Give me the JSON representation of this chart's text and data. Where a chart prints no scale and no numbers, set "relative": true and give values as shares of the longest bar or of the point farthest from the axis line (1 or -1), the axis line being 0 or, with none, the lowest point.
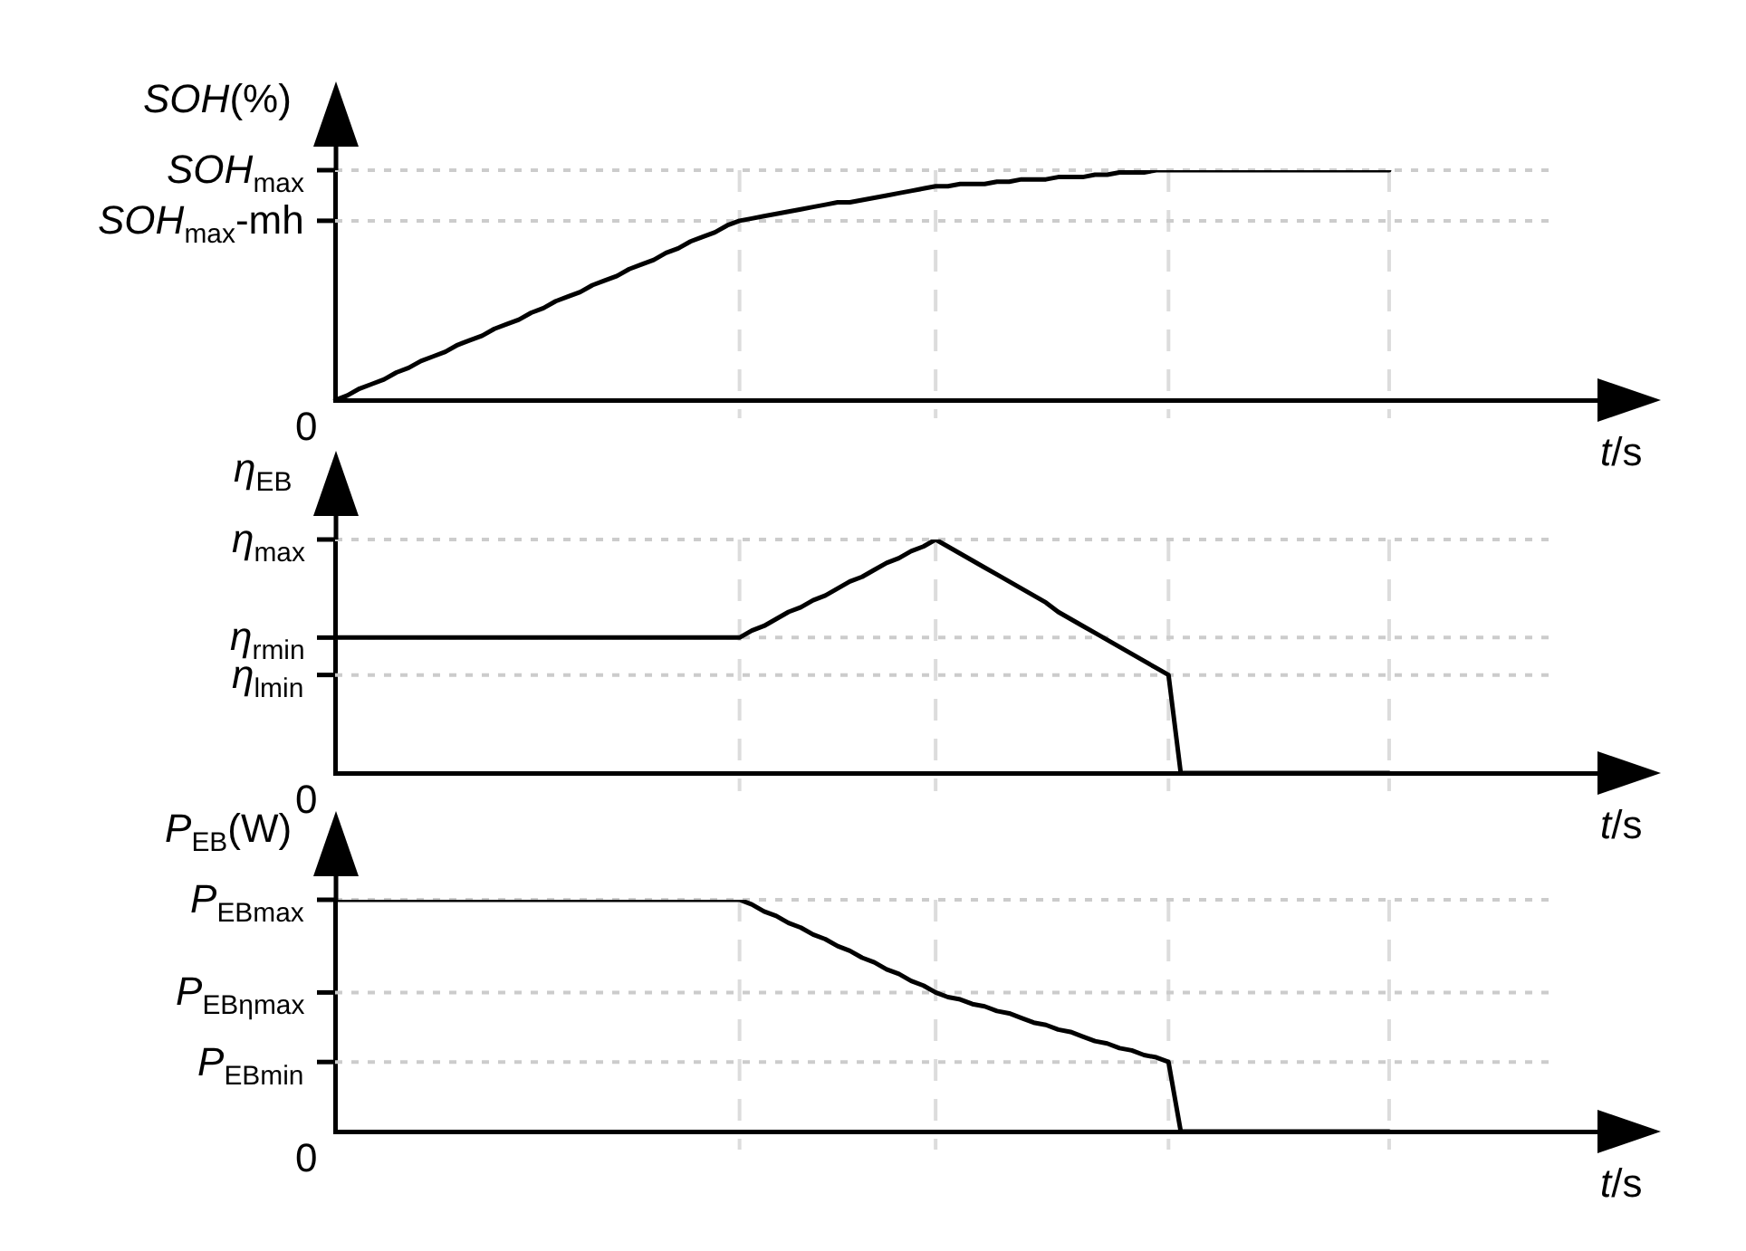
{
  "chart_data": [
    {
      "type": "line",
      "relative": true,
      "xlabel": "t/s",
      "ylabel": "SOH(%)",
      "categories": [
        null,
        null,
        null,
        null,
        null,
        null,
        null,
        null,
        null,
        null,
        null,
        null,
        null,
        null,
        null,
        null,
        null,
        null,
        null,
        null,
        null,
        null,
        null,
        null,
        null,
        null,
        null,
        null,
        null,
        null,
        null,
        null,
        null,
        null,
        null,
        null,
        null,
        null,
        null,
        null,
        null,
        null,
        null,
        null,
        null,
        null,
        null,
        null,
        null,
        null,
        null,
        null,
        null,
        null,
        null,
        null,
        null,
        null,
        null,
        null,
        null,
        null,
        null,
        null,
        null,
        null,
        null,
        null,
        null,
        null,
        null,
        null,
        null,
        null,
        null,
        null,
        null,
        null,
        null,
        null,
        null,
        null,
        null,
        null,
        null,
        null,
        null,
        null,
        null,
        null,
        null,
        null,
        null,
        null,
        null,
        null,
        null,
        null,
        null,
        null,
        null,
        null,
        null,
        null
      ],
      "values": [
        0,
        0.02,
        0.05,
        0.07,
        0.09,
        0.12,
        0.14,
        0.17,
        0.19,
        0.21,
        0.24,
        0.26,
        0.28,
        0.31,
        0.33,
        0.35,
        0.38,
        0.4,
        0.43,
        0.45,
        0.47,
        0.5,
        0.52,
        0.54,
        0.57,
        0.59,
        0.61,
        0.64,
        0.66,
        0.69,
        0.71,
        0.73,
        0.76,
        0.78,
        0.79,
        0.8,
        0.81,
        0.82,
        0.83,
        0.84,
        0.85,
        0.86,
        0.86,
        0.87,
        0.88,
        0.89,
        0.9,
        0.91,
        0.92,
        0.93,
        0.93,
        0.94,
        0.94,
        0.94,
        0.95,
        0.95,
        0.96,
        0.96,
        0.96,
        0.97,
        0.97,
        0.97,
        0.98,
        0.98,
        0.99,
        0.99,
        0.99,
        1,
        1,
        1,
        1,
        1,
        1,
        1,
        1,
        1,
        1,
        1,
        1,
        1,
        1,
        1,
        1,
        1,
        1,
        1,
        1,
        null,
        null,
        null,
        null,
        null,
        null,
        null,
        null,
        null,
        null,
        null,
        null,
        null,
        null,
        null,
        null,
        null
      ],
      "color": "#000000",
      "grid": "x",
      "ref_lines": [
        {
          "axis": "y",
          "value": 1,
          "label": "SOH$_{max}$",
          "color": "#cccccc",
          "line_style": "dotted"
        },
        {
          "axis": "y",
          "value": 0.78,
          "label": "SOH$_{max}$-mh",
          "color": "#cccccc",
          "line_style": "dotted"
        }
      ],
      "annotations": [
        "0"
      ]
    },
    {
      "type": "line",
      "relative": true,
      "xlabel": "t/s",
      "ylabel": "η$_{EB}$",
      "categories": [
        null,
        null,
        null,
        null,
        null,
        null,
        null,
        null,
        null,
        null,
        null,
        null,
        null,
        null,
        null,
        null,
        null,
        null,
        null,
        null,
        null,
        null,
        null,
        null,
        null,
        null,
        null,
        null,
        null,
        null,
        null,
        null,
        null,
        null,
        null,
        null,
        null,
        null,
        null,
        null,
        null,
        null,
        null,
        null,
        null,
        null,
        null,
        null,
        null,
        null,
        null,
        null,
        null,
        null,
        null,
        null,
        null,
        null,
        null,
        null,
        null,
        null,
        null,
        null,
        null,
        null,
        null,
        null,
        null,
        null,
        null,
        null,
        null,
        null,
        null,
        null,
        null,
        null,
        null,
        null,
        null,
        null,
        null,
        null,
        null,
        null,
        null,
        null,
        null,
        null,
        null,
        null,
        null,
        null,
        null,
        null,
        null,
        null,
        null,
        null,
        null,
        null,
        null,
        null
      ],
      "values": [
        0.58,
        0.58,
        0.58,
        0.58,
        0.58,
        0.58,
        0.58,
        0.58,
        0.58,
        0.58,
        0.58,
        0.58,
        0.58,
        0.58,
        0.58,
        0.58,
        0.58,
        0.58,
        0.58,
        0.58,
        0.58,
        0.58,
        0.58,
        0.58,
        0.58,
        0.58,
        0.58,
        0.58,
        0.58,
        0.58,
        0.58,
        0.58,
        0.58,
        0.58,
        0.61,
        0.63,
        0.66,
        0.69,
        0.71,
        0.74,
        0.76,
        0.79,
        0.82,
        0.84,
        0.87,
        0.9,
        0.92,
        0.95,
        0.97,
        1,
        0.97,
        0.94,
        0.91,
        0.88,
        0.85,
        0.82,
        0.79,
        0.76,
        0.73,
        0.69,
        0.66,
        0.63,
        0.6,
        0.57,
        0.54,
        0.51,
        0.48,
        0.45,
        0.42,
        0,
        0,
        0,
        0,
        0,
        0,
        0,
        0,
        0,
        0,
        0,
        0,
        0,
        0,
        0,
        0,
        0,
        0,
        null,
        null,
        null,
        null,
        null,
        null,
        null,
        null,
        null,
        null,
        null,
        null,
        null,
        null,
        null,
        null,
        null
      ],
      "color": "#000000",
      "grid": "x",
      "ref_lines": [
        {
          "axis": "y",
          "value": 1,
          "label": "η$_{max}$",
          "color": "#cccccc",
          "line_style": "dotted"
        },
        {
          "axis": "y",
          "value": 0.58,
          "label": "η$_{rmin}$",
          "color": "#cccccc",
          "line_style": "dotted"
        },
        {
          "axis": "y",
          "value": 0.42,
          "label": "η$_{lmin}$",
          "color": "#cccccc",
          "line_style": "dotted"
        }
      ],
      "annotations": [
        "0"
      ]
    },
    {
      "type": "line",
      "relative": true,
      "xlabel": "t/s",
      "ylabel": "P$_{EB}$(W)",
      "categories": [
        null,
        null,
        null,
        null,
        null,
        null,
        null,
        null,
        null,
        null,
        null,
        null,
        null,
        null,
        null,
        null,
        null,
        null,
        null,
        null,
        null,
        null,
        null,
        null,
        null,
        null,
        null,
        null,
        null,
        null,
        null,
        null,
        null,
        null,
        null,
        null,
        null,
        null,
        null,
        null,
        null,
        null,
        null,
        null,
        null,
        null,
        null,
        null,
        null,
        null,
        null,
        null,
        null,
        null,
        null,
        null,
        null,
        null,
        null,
        null,
        null,
        null,
        null,
        null,
        null,
        null,
        null,
        null,
        null,
        null,
        null,
        null,
        null,
        null,
        null,
        null,
        null,
        null,
        null,
        null,
        null,
        null,
        null,
        null,
        null,
        null,
        null,
        null,
        null,
        null,
        null,
        null,
        null,
        null,
        null,
        null,
        null,
        null,
        null,
        null,
        null,
        null,
        null,
        null
      ],
      "values": [
        1,
        1,
        1,
        1,
        1,
        1,
        1,
        1,
        1,
        1,
        1,
        1,
        1,
        1,
        1,
        1,
        1,
        1,
        1,
        1,
        1,
        1,
        1,
        1,
        1,
        1,
        1,
        1,
        1,
        1,
        1,
        1,
        1,
        1,
        0.98,
        0.95,
        0.93,
        0.9,
        0.88,
        0.85,
        0.83,
        0.8,
        0.78,
        0.75,
        0.73,
        0.7,
        0.68,
        0.65,
        0.63,
        0.6,
        0.58,
        0.57,
        0.55,
        0.54,
        0.52,
        0.51,
        0.49,
        0.47,
        0.46,
        0.44,
        0.43,
        0.41,
        0.39,
        0.38,
        0.36,
        0.35,
        0.33,
        0.32,
        0.3,
        0,
        0,
        0,
        0,
        0,
        0,
        0,
        0,
        0,
        0,
        0,
        0,
        0,
        0,
        0,
        0,
        0,
        0,
        null,
        null,
        null,
        null,
        null,
        null,
        null,
        null,
        null,
        null,
        null,
        null,
        null,
        null,
        null,
        null,
        null
      ],
      "color": "#000000",
      "grid": "x",
      "ref_lines": [
        {
          "axis": "y",
          "value": 1,
          "label": "P$_{EBmax}$",
          "color": "#cccccc",
          "line_style": "dotted"
        },
        {
          "axis": "y",
          "value": 0.6,
          "label": "P$_{EBηmax}$",
          "color": "#cccccc",
          "line_style": "dotted"
        },
        {
          "axis": "y",
          "value": 0.3,
          "label": "P$_{EBmin}$",
          "color": "#cccccc",
          "line_style": "dotted"
        }
      ],
      "annotations": [
        "0"
      ]
    }
  ]
}
